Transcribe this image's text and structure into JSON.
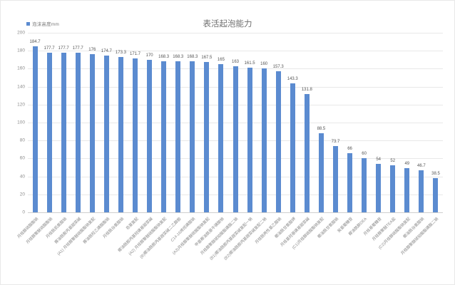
{
  "chart": {
    "title": "表活起泡能力",
    "legend": {
      "label": "泡沫高度mm",
      "color": "#5b8bd0"
    }
  },
  "chart_data": {
    "type": "bar",
    "title": "表活起泡能力",
    "series_name": "泡沫高度mm",
    "bar_color": "#5b8bd0",
    "ylim": [
      0,
      200
    ],
    "yticks": [
      0,
      20,
      40,
      60,
      80,
      100,
      120,
      140,
      160,
      180,
      200
    ],
    "grid": true,
    "legend_position": "top-left",
    "categories": [
      "月桂醇硫酸酯钠",
      "月桂醇聚醚硫酸酯钠",
      "月桂酰肌氨酸钠",
      "椰油酰胺丙基甜菜碱",
      "(A1) 月桂醇聚醚硫酸酯钠复配",
      "椰油酰羟乙磺酸酯钠",
      "月桂酰谷氨酸钠",
      "皂基复配",
      "椰油酰胺丙基羟磺基甜菜碱",
      "(A2) 月桂醇聚醚硫酸酯钠复配",
      "(B)椰油酰胺丙基甜菜碱二乙醇胺",
      "C14-16烯烃磺酸钠",
      "(A3)月桂醇聚醚硫酸酯钠复配",
      "甲基椰油酰基牛磺酸钠",
      "月桂醇聚醚琥珀酸酯磺酸二钠",
      "(B1)椰油酰胺丙基甜菜碱复配一钠",
      "(B2)椰油酰胺丙基甜菜碱复配二钠",
      "月桂酰两性基乙酸钠",
      "椰油酰甘氨酸钾",
      "月桂基羟基磺基甜菜碱",
      "(C1)月桂醇硫酸酯钠复配",
      "椰油酰甘氨酸钠",
      "癸基葡糖苷",
      "椰油酰胺DEA",
      "月桂基葡糖苷",
      "月桂醇聚醚TEA盐",
      "(C2)月桂醇硫酸酯钠复配",
      "椰油酰谷氨酸钠",
      "月桂醇聚醚琥珀酸酯磺酸二钠"
    ],
    "values": [
      184.7,
      177.7,
      177.7,
      177.7,
      176,
      174.7,
      173.3,
      171.7,
      170,
      168.3,
      168.3,
      168.3,
      167.5,
      165,
      163,
      161.5,
      160,
      157.3,
      143.3,
      131.8,
      88.5,
      73.7,
      66,
      60,
      54,
      52,
      49,
      46.7,
      38.5
    ],
    "value_labels": [
      "184.7",
      "177.7",
      "177.7",
      "177.7",
      "176",
      "174.7",
      "173.3",
      "171.7",
      "170",
      "168.3",
      "168.3",
      "168.3",
      "167.5",
      "165",
      "163",
      "161.5",
      "160",
      "157.3",
      "143.3",
      "131.8",
      "88.5",
      "73.7",
      "66",
      "60",
      "54",
      "52",
      "49",
      "46.7",
      "38.5"
    ]
  }
}
